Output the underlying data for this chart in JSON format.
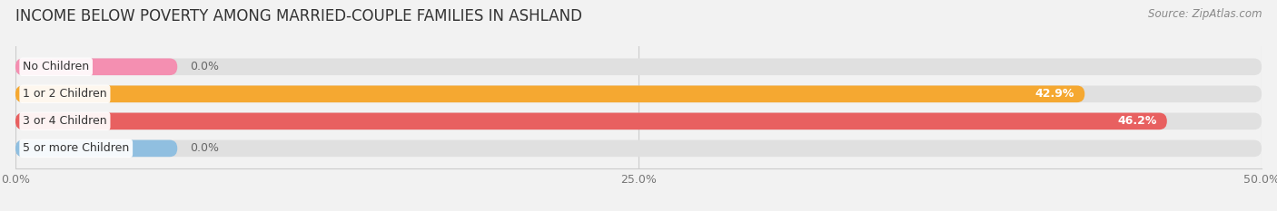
{
  "title": "INCOME BELOW POVERTY AMONG MARRIED-COUPLE FAMILIES IN ASHLAND",
  "source": "Source: ZipAtlas.com",
  "categories": [
    "No Children",
    "1 or 2 Children",
    "3 or 4 Children",
    "5 or more Children"
  ],
  "values": [
    0.0,
    42.9,
    46.2,
    0.0
  ],
  "bar_colors": [
    "#f48fb1",
    "#f5a831",
    "#e86060",
    "#90bfe0"
  ],
  "xlim": [
    0,
    50
  ],
  "xticks": [
    0.0,
    25.0,
    50.0
  ],
  "xtick_labels": [
    "0.0%",
    "25.0%",
    "50.0%"
  ],
  "bar_height": 0.62,
  "background_color": "#f2f2f2",
  "bar_bg_color": "#e0e0e0",
  "title_fontsize": 12,
  "source_fontsize": 8.5,
  "label_fontsize": 9,
  "value_fontsize": 9,
  "zero_bar_width": 6.5
}
